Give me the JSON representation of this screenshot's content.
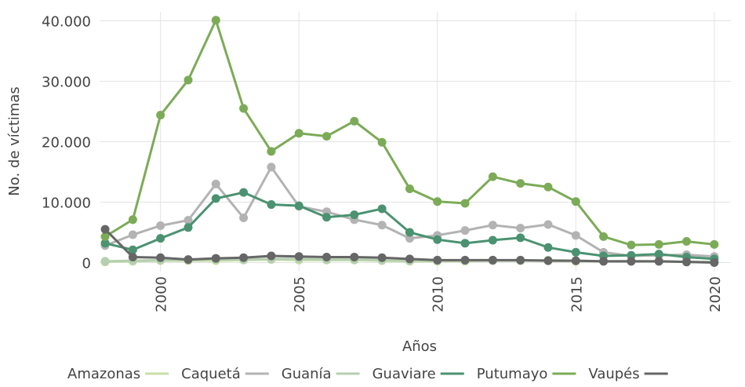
{
  "chart_data": {
    "type": "line",
    "xlabel": "Años",
    "ylabel": "No. de víctimas",
    "x": [
      1998,
      1999,
      2000,
      2001,
      2002,
      2003,
      2004,
      2005,
      2006,
      2007,
      2008,
      2009,
      2010,
      2011,
      2012,
      2013,
      2014,
      2015,
      2016,
      2017,
      2018,
      2019,
      2020
    ],
    "xlim": [
      1997.8,
      2020.6
    ],
    "xticks": [
      2000,
      2005,
      2010,
      2015,
      2020
    ],
    "ylim": [
      -1500,
      41500
    ],
    "yticks": [
      0,
      {
        "value": 10000,
        "label": "10.000"
      },
      {
        "value": 20000,
        "label": "20.000"
      },
      {
        "value": 30000,
        "label": "30.000"
      },
      {
        "value": 40000,
        "label": "40.000"
      }
    ],
    "grid": true,
    "legend": "bottom",
    "series": [
      {
        "name": "Amazonas",
        "color": "#c8dfa6",
        "values": [
          100,
          200,
          300,
          300,
          300,
          400,
          500,
          400,
          400,
          400,
          300,
          200,
          200,
          200,
          300,
          300,
          300,
          200,
          200,
          200,
          200,
          100,
          100
        ]
      },
      {
        "name": "Caquetá",
        "color": "#b3b3b3",
        "values": [
          2800,
          4600,
          6100,
          7000,
          13000,
          7400,
          15800,
          9300,
          8400,
          7100,
          6200,
          4000,
          4500,
          5300,
          6200,
          5700,
          6300,
          4500,
          1700,
          1100,
          1200,
          1300,
          1000
        ]
      },
      {
        "name": "Guanía",
        "color": "#b5cfb0",
        "values": [
          200,
          300,
          400,
          400,
          500,
          500,
          600,
          600,
          500,
          500,
          400,
          300,
          300,
          300,
          300,
          300,
          400,
          300,
          200,
          200,
          200,
          100,
          100
        ]
      },
      {
        "name": "Guaviare",
        "color": "#4b9271",
        "values": [
          3200,
          2100,
          4000,
          5800,
          10600,
          11600,
          9600,
          9400,
          7500,
          7900,
          8900,
          5000,
          3800,
          3200,
          3700,
          4100,
          2500,
          1700,
          1100,
          1200,
          1400,
          900,
          600
        ]
      },
      {
        "name": "Putumayo",
        "color": "#7bab57",
        "values": [
          4300,
          7100,
          24400,
          30200,
          40100,
          25500,
          18400,
          21400,
          20900,
          23400,
          19900,
          12200,
          10100,
          9800,
          14200,
          13100,
          12500,
          10100,
          4300,
          2900,
          3000,
          3500,
          3000
        ]
      },
      {
        "name": "Vaupés",
        "color": "#666666",
        "values": [
          5500,
          900,
          800,
          500,
          700,
          800,
          1100,
          1000,
          900,
          900,
          800,
          600,
          400,
          400,
          400,
          400,
          300,
          300,
          200,
          200,
          200,
          100,
          0
        ]
      }
    ]
  }
}
